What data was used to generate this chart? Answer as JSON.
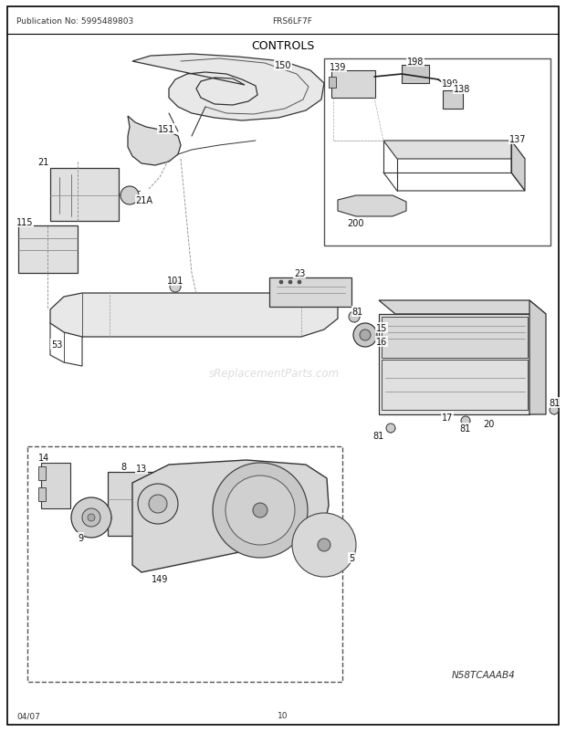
{
  "title": "CONTROLS",
  "pub_no": "Publication No: 5995489803",
  "model": "FRS6LF7F",
  "diagram_id": "N58TCAAAB4",
  "date": "04/07",
  "page": "10",
  "bg_color": "#ffffff",
  "border_color": "#000000",
  "watermark": "sReplacementParts.com",
  "fig_w": 6.2,
  "fig_h": 8.03,
  "dpi": 100
}
